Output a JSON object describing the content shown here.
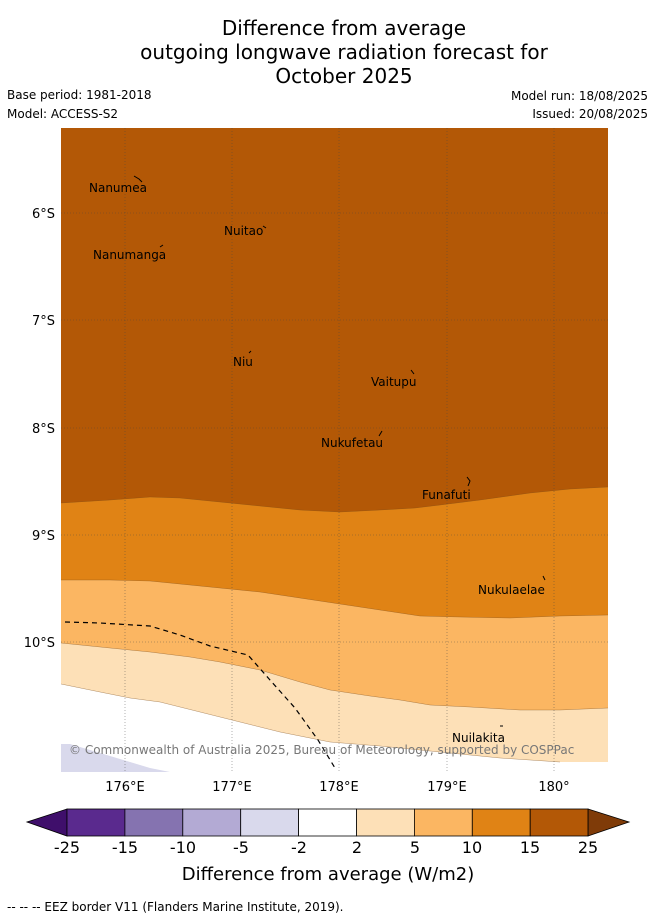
{
  "title_lines": [
    "Difference from average",
    "outgoing longwave radiation forecast for",
    "October 2025"
  ],
  "base_period": "Base period: 1981-2018",
  "model": "Model: ACCESS-S2",
  "model_run": "Model run: 18/08/2025",
  "issued": "Issued: 20/08/2025",
  "map": {
    "lat_labels": [
      "6°S",
      "7°S",
      "8°S",
      "9°S",
      "10°S"
    ],
    "lon_labels": [
      "176°E",
      "177°E",
      "178°E",
      "179°E",
      "180°"
    ],
    "places": [
      {
        "name": "Nanumea"
      },
      {
        "name": "Nuitao"
      },
      {
        "name": "Nanumanga"
      },
      {
        "name": "Niu"
      },
      {
        "name": "Vaitupu"
      },
      {
        "name": "Nukufetau"
      },
      {
        "name": "Funafuti"
      },
      {
        "name": "Nukulaelae"
      },
      {
        "name": "Nuilakita"
      }
    ],
    "copyright": "© Commonwealth of Australia 2025, Bureau of Meteorology, supported by COSPPac"
  },
  "colorbar": {
    "tick_labels": [
      "-25",
      "-15",
      "-10",
      "-5",
      "-2",
      "2",
      "5",
      "10",
      "15",
      "25"
    ],
    "colors": [
      "#3f0f6b",
      "#5a2a8e",
      "#8573b0",
      "#b3aad4",
      "#d9d9ec",
      "#ffffff",
      "#fde0b7",
      "#fbb662",
      "#e08315",
      "#b35806",
      "#7f3b08"
    ],
    "label": "Difference from average (W/m2)"
  },
  "footer": "--  --  -- EEZ border V11 (Flanders Marine Institute, 2019)."
}
